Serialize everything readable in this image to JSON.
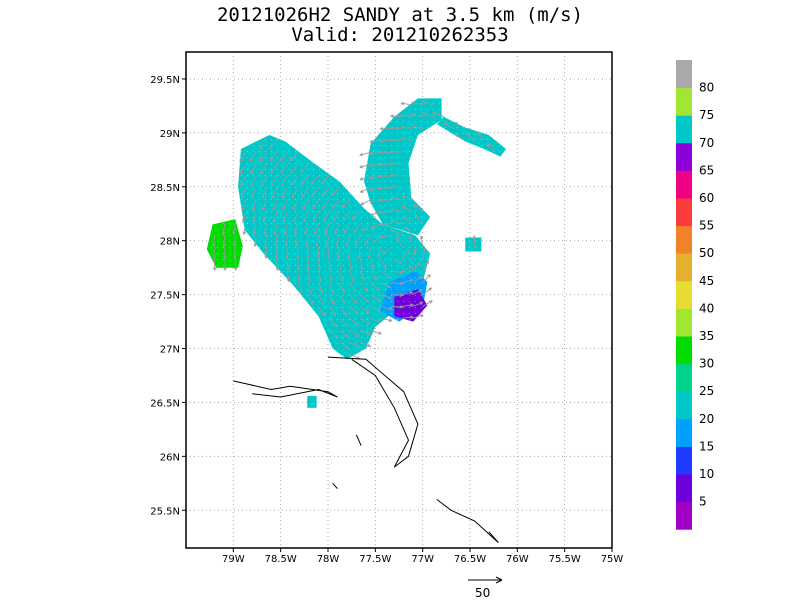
{
  "chart_data": {
    "type": "heatmap",
    "title": "20121026H2 SANDY at 3.5 km (m/s)",
    "subtitle": "Valid: 201210262353",
    "xlim": [
      -79.5,
      -75.0
    ],
    "ylim": [
      25.15,
      29.75
    ],
    "x_ticks": [
      -79,
      -78.5,
      -78,
      -77.5,
      -77,
      -76.5,
      -76,
      -75.5,
      -75
    ],
    "x_tick_labels": [
      "79W",
      "78.5W",
      "78W",
      "77.5W",
      "77W",
      "76.5W",
      "76W",
      "75.5W",
      "75W"
    ],
    "y_ticks": [
      25.5,
      26,
      26.5,
      27,
      27.5,
      28,
      28.5,
      29,
      29.5
    ],
    "y_tick_labels": [
      "25.5N",
      "26N",
      "26.5N",
      "27N",
      "27.5N",
      "28N",
      "28.5N",
      "29N",
      "29.5N"
    ],
    "grid": true,
    "colorbar": {
      "labels": [
        "5",
        "10",
        "15",
        "20",
        "25",
        "30",
        "35",
        "40",
        "45",
        "50",
        "55",
        "60",
        "65",
        "70",
        "75",
        "80"
      ],
      "colors": [
        "#a000c8",
        "#6e00dc",
        "#1e3cff",
        "#00a0ff",
        "#00c8c8",
        "#00d28c",
        "#00dc00",
        "#a0e632",
        "#e6dc32",
        "#e6af2d",
        "#f08228",
        "#fa3c3c",
        "#f00082",
        "#8c00dc",
        "#00c8c8",
        "#a0e632",
        "#aaaaaa"
      ]
    },
    "wind_regions": [
      {
        "name": "main-core",
        "speed_ms": 24,
        "polygon": [
          [
            -78.92,
            28.85
          ],
          [
            -78.62,
            28.98
          ],
          [
            -78.45,
            28.92
          ],
          [
            -78.15,
            28.72
          ],
          [
            -77.88,
            28.55
          ],
          [
            -77.62,
            28.3
          ],
          [
            -77.42,
            28.15
          ],
          [
            -77.08,
            28.05
          ],
          [
            -76.92,
            27.88
          ],
          [
            -77.0,
            27.62
          ],
          [
            -77.2,
            27.42
          ],
          [
            -77.5,
            27.2
          ],
          [
            -77.6,
            27.0
          ],
          [
            -77.8,
            26.9
          ],
          [
            -77.95,
            27.0
          ],
          [
            -78.1,
            27.3
          ],
          [
            -78.38,
            27.6
          ],
          [
            -78.68,
            27.88
          ],
          [
            -78.88,
            28.1
          ],
          [
            -78.95,
            28.5
          ]
        ]
      },
      {
        "name": "north-band",
        "speed_ms": 24,
        "polygon": [
          [
            -77.55,
            28.9
          ],
          [
            -77.3,
            29.15
          ],
          [
            -77.05,
            29.32
          ],
          [
            -76.8,
            29.32
          ],
          [
            -76.8,
            29.12
          ],
          [
            -77.05,
            28.98
          ],
          [
            -77.15,
            28.72
          ],
          [
            -77.12,
            28.4
          ],
          [
            -76.92,
            28.22
          ],
          [
            -77.05,
            28.05
          ],
          [
            -77.42,
            28.15
          ],
          [
            -77.55,
            28.35
          ],
          [
            -77.62,
            28.55
          ]
        ]
      },
      {
        "name": "east-arc",
        "speed_ms": 24,
        "polygon": [
          [
            -76.85,
            29.08
          ],
          [
            -76.55,
            28.92
          ],
          [
            -76.35,
            28.85
          ],
          [
            -76.18,
            28.78
          ],
          [
            -76.12,
            28.85
          ],
          [
            -76.3,
            28.98
          ],
          [
            -76.55,
            29.05
          ],
          [
            -76.78,
            29.15
          ]
        ]
      },
      {
        "name": "west-patch",
        "speed_ms": 34,
        "polygon": [
          [
            -79.22,
            28.15
          ],
          [
            -78.98,
            28.2
          ],
          [
            -78.9,
            27.95
          ],
          [
            -78.95,
            27.75
          ],
          [
            -79.18,
            27.75
          ],
          [
            -79.28,
            27.92
          ]
        ]
      },
      {
        "name": "east-low",
        "speed_ms": 15,
        "polygon": [
          [
            -77.35,
            27.62
          ],
          [
            -77.08,
            27.72
          ],
          [
            -76.95,
            27.62
          ],
          [
            -77.0,
            27.38
          ],
          [
            -77.25,
            27.25
          ],
          [
            -77.45,
            27.35
          ]
        ]
      },
      {
        "name": "east-core",
        "speed_ms": 8,
        "polygon": [
          [
            -77.3,
            27.48
          ],
          [
            -77.05,
            27.55
          ],
          [
            -76.95,
            27.4
          ],
          [
            -77.1,
            27.25
          ],
          [
            -77.3,
            27.3
          ]
        ]
      },
      {
        "name": "isolated-se",
        "speed_ms": 24,
        "polygon": [
          [
            -76.55,
            28.03
          ],
          [
            -76.38,
            28.03
          ],
          [
            -76.38,
            27.9
          ],
          [
            -76.55,
            27.9
          ]
        ]
      },
      {
        "name": "isolated-south",
        "speed_ms": 24,
        "polygon": [
          [
            -78.22,
            26.56
          ],
          [
            -78.12,
            26.56
          ],
          [
            -78.12,
            26.45
          ],
          [
            -78.22,
            26.45
          ]
        ]
      }
    ],
    "coastlines": [
      [
        [
          -79.0,
          26.7
        ],
        [
          -78.6,
          26.62
        ],
        [
          -78.4,
          26.65
        ],
        [
          -78.0,
          26.6
        ],
        [
          -77.9,
          26.55
        ],
        [
          -78.1,
          26.62
        ],
        [
          -78.5,
          26.55
        ],
        [
          -78.8,
          26.58
        ]
      ],
      [
        [
          -78.0,
          26.92
        ],
        [
          -77.6,
          26.9
        ],
        [
          -77.2,
          26.6
        ],
        [
          -77.05,
          26.3
        ],
        [
          -77.15,
          26.0
        ],
        [
          -77.3,
          25.9
        ],
        [
          -77.15,
          26.15
        ],
        [
          -77.3,
          26.45
        ],
        [
          -77.5,
          26.75
        ],
        [
          -77.75,
          26.9
        ]
      ],
      [
        [
          -76.85,
          25.6
        ],
        [
          -76.7,
          25.5
        ],
        [
          -76.45,
          25.4
        ],
        [
          -76.2,
          25.2
        ],
        [
          -76.3,
          25.3
        ]
      ],
      [
        [
          -77.7,
          26.2
        ],
        [
          -77.65,
          26.1
        ]
      ],
      [
        [
          -77.95,
          25.75
        ],
        [
          -77.9,
          25.7
        ]
      ]
    ],
    "scale_vector_label": "50"
  }
}
